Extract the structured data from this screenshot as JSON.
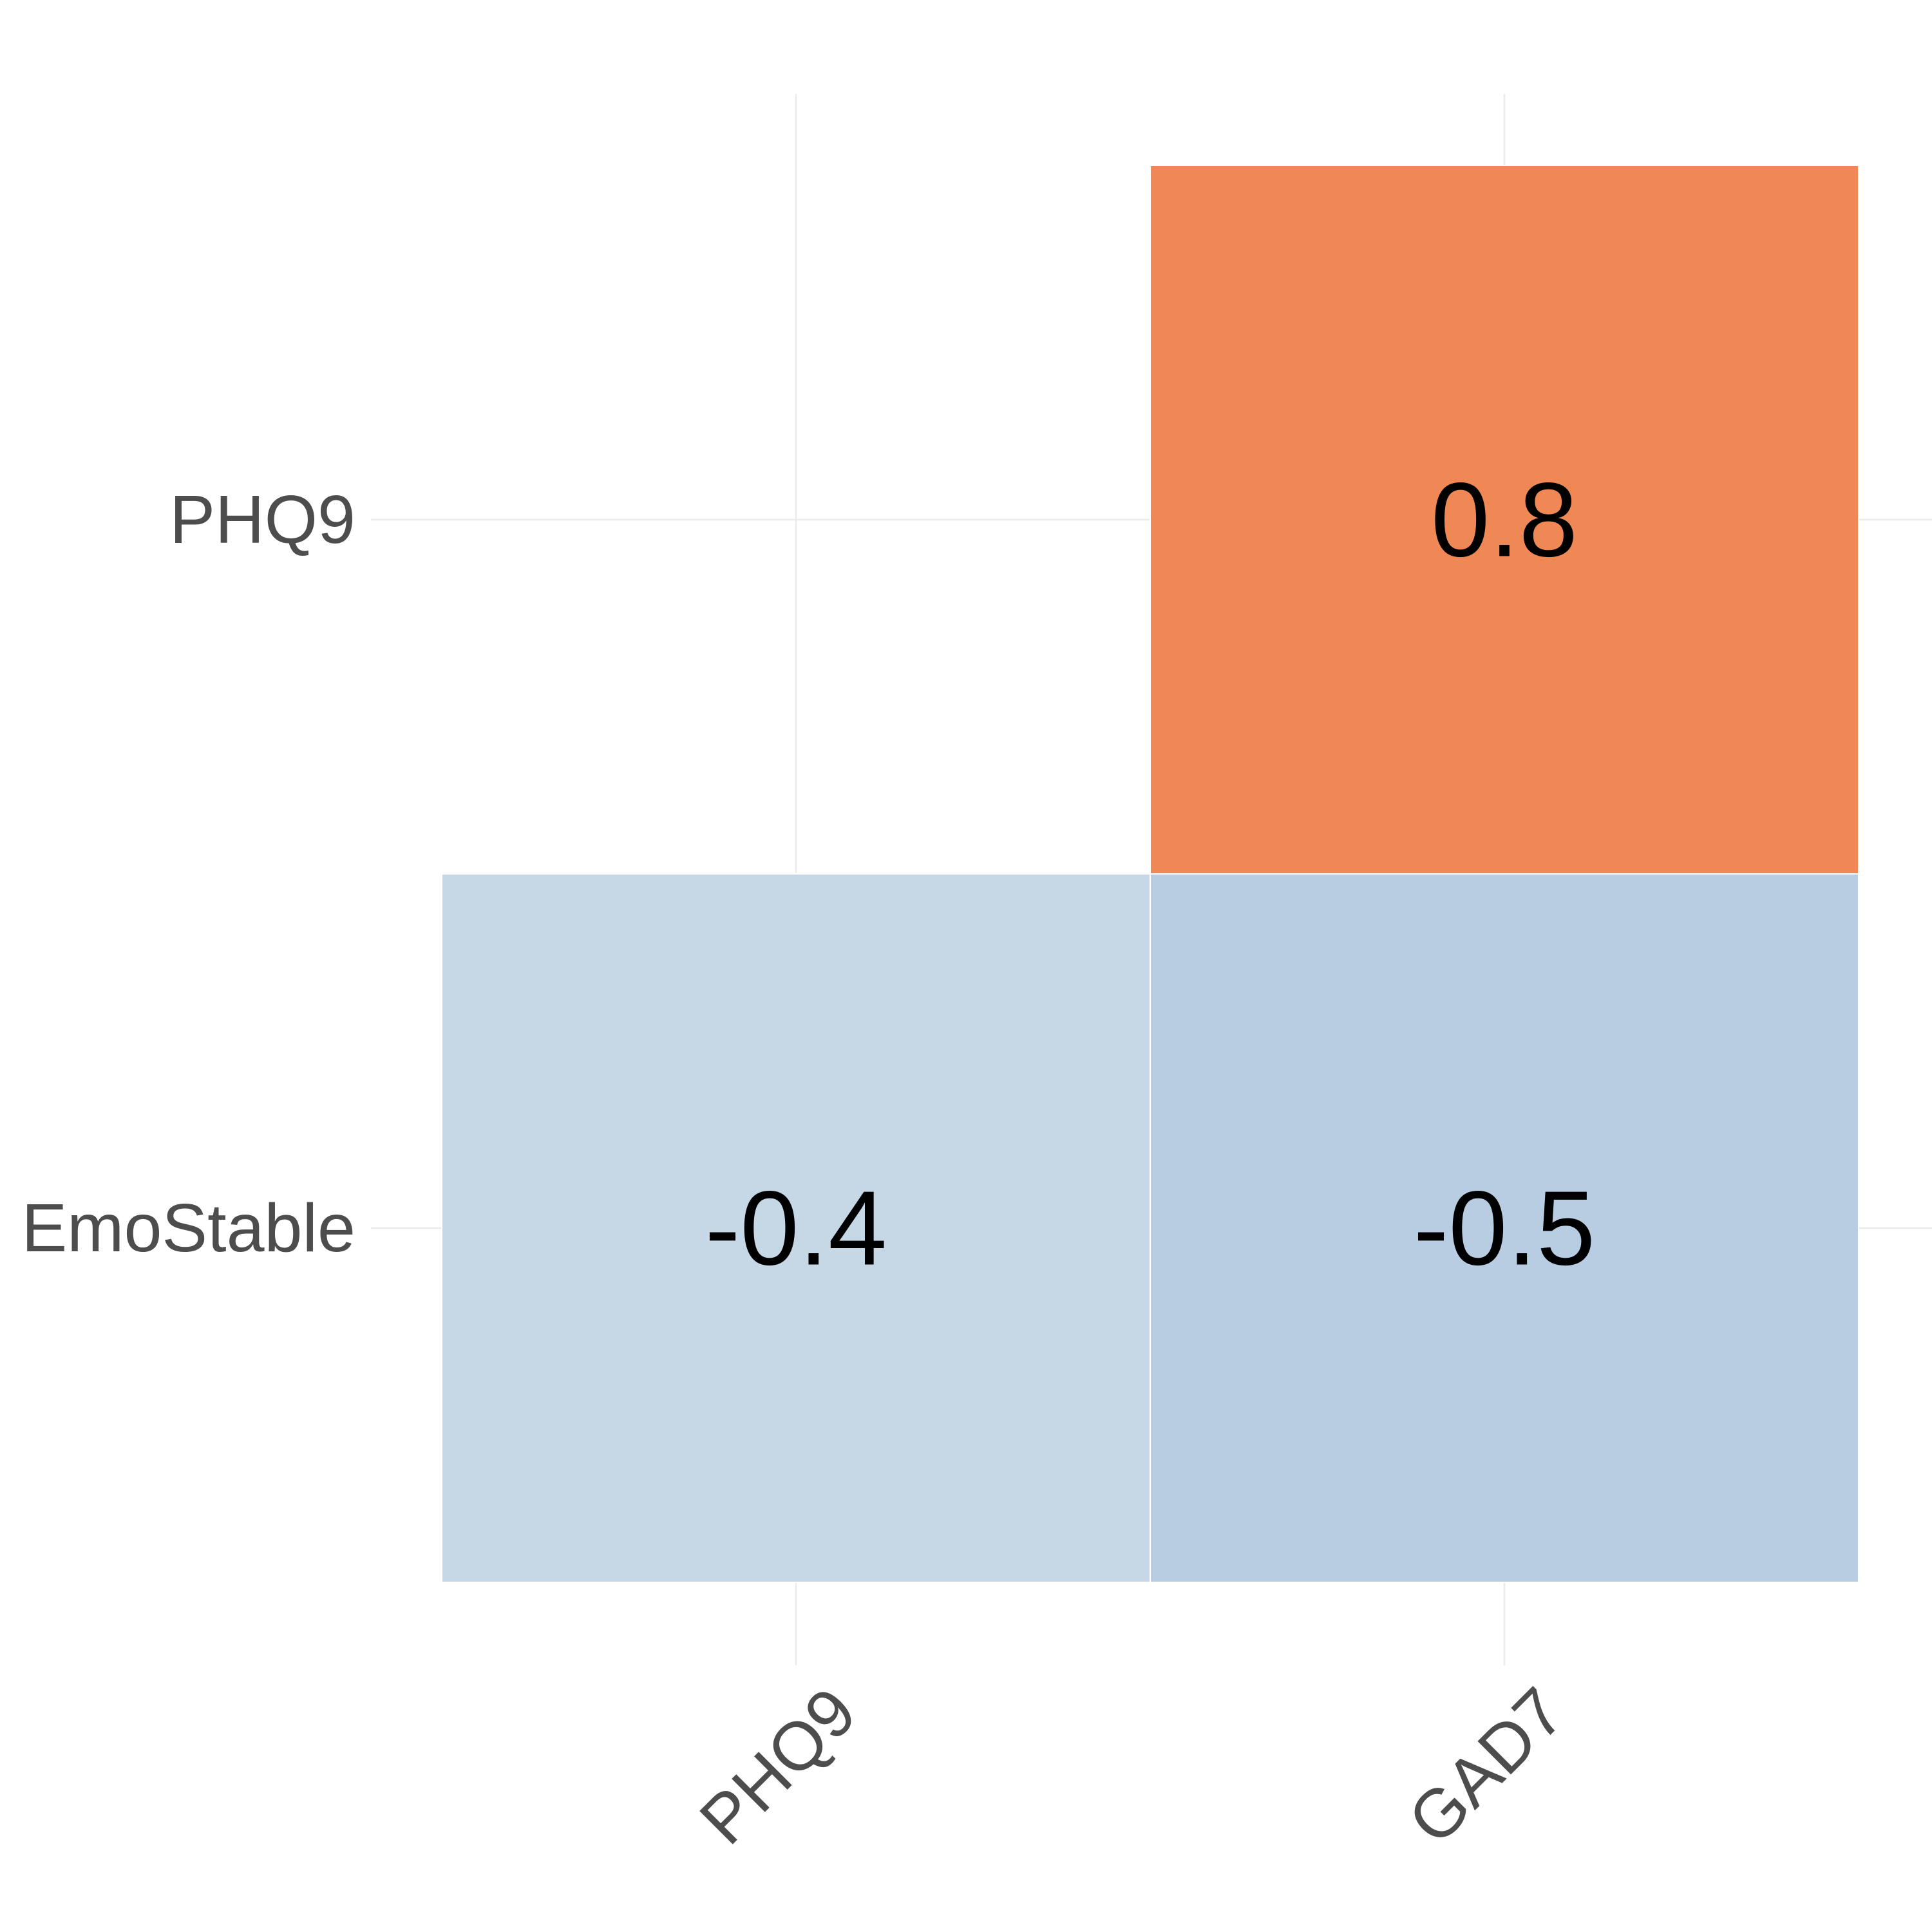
{
  "chart_data": {
    "type": "heatmap",
    "title": "",
    "xlabel": "",
    "ylabel": "",
    "x_categories": [
      "PHQ9",
      "GAD7"
    ],
    "y_categories": [
      "EmoStable",
      "PHQ9"
    ],
    "cells": [
      {
        "x": "PHQ9",
        "y": "EmoStable",
        "value": -0.4,
        "label": "-0.4",
        "color": "#c6d8e6"
      },
      {
        "x": "GAD7",
        "y": "EmoStable",
        "value": -0.5,
        "label": "-0.5",
        "color": "#b8cde1"
      },
      {
        "x": "GAD7",
        "y": "PHQ9",
        "value": 0.8,
        "label": "0.8",
        "color": "#ef8854"
      }
    ],
    "x_tick_rotation_deg": 45,
    "grid": true,
    "legend": "none"
  }
}
